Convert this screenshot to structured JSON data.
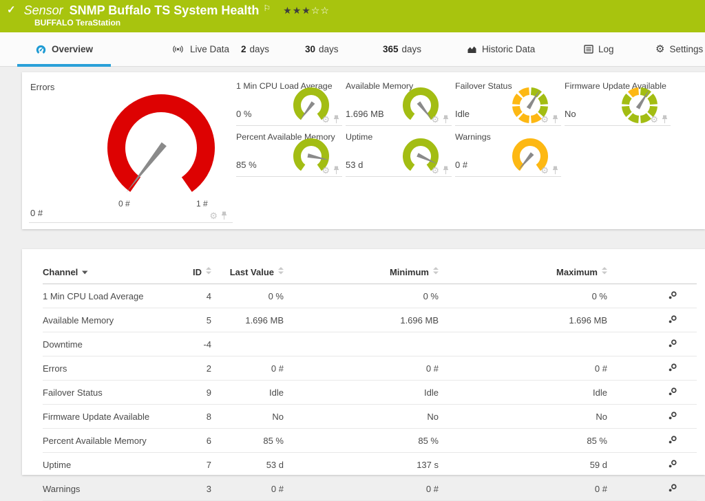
{
  "topbar": {
    "status_check": "✓",
    "kind": "Sensor",
    "title": "SNMP Buffalo TS System Health",
    "subtitle": "BUFFALO TeraStation",
    "rating": {
      "filled": 3,
      "total": 5
    },
    "bg_color": "#a8c40e"
  },
  "icons": {
    "flag": "⚐",
    "gear": "⚙",
    "star_filled": "★",
    "star_empty": "☆"
  },
  "tabs": [
    {
      "id": "overview",
      "icon": "gauge-icon",
      "label": "Overview",
      "active": true
    },
    {
      "id": "live-data",
      "icon": "broadcast-icon",
      "label": "Live Data"
    },
    {
      "id": "2-days",
      "number": "2",
      "label": "days"
    },
    {
      "id": "30-days",
      "number": "30",
      "label": "days"
    },
    {
      "id": "365-days",
      "number": "365",
      "label": "days"
    },
    {
      "id": "historic-data",
      "icon": "area-chart-icon",
      "label": "Historic Data"
    },
    {
      "id": "log",
      "icon": "log-icon",
      "label": "Log"
    },
    {
      "id": "settings",
      "icon": "gear-icon",
      "label": "Settings"
    }
  ],
  "accent": {
    "tab_blue": "#2aa0d8",
    "icon_blue": "#1d9ad3"
  },
  "gauges": {
    "needle_color": "#8a8a8a",
    "segment_colors": {
      "green": "#a3bd13",
      "yellow": "#fdb813"
    },
    "primary": {
      "label": "Errors",
      "value": "0 #",
      "scale_min": "0 #",
      "scale_max": "1 #",
      "kind": "arc",
      "arc_color": "#dd0202",
      "needle_deg": 128
    },
    "tiles": [
      {
        "label": "1 Min CPU Load Average",
        "value": "0 %",
        "kind": "arc",
        "arc_color": "#a3bd13",
        "needle_deg": 127
      },
      {
        "label": "Available Memory",
        "value": "1.696 MB",
        "kind": "arc",
        "arc_color": "#a3bd13",
        "needle_deg": 52
      },
      {
        "label": "Failover Status",
        "value": "Idle",
        "kind": "ring",
        "segments": [
          "green",
          "green",
          "green",
          "yellow",
          "yellow",
          "yellow",
          "yellow",
          "yellow"
        ],
        "needle_deg": -58
      },
      {
        "label": "Firmware Update Available",
        "value": "No",
        "kind": "ring",
        "segments": [
          "green",
          "green",
          "green",
          "green",
          "green",
          "green",
          "green",
          "yellow"
        ],
        "needle_deg": -58
      },
      {
        "label": "Percent Available Memory",
        "value": "85 %",
        "kind": "arc",
        "arc_color": "#a3bd13",
        "needle_deg": 12
      },
      {
        "label": "Uptime",
        "value": "53 d",
        "kind": "arc",
        "arc_color": "#a3bd13",
        "needle_deg": 25
      },
      {
        "label": "Warnings",
        "value": "0 #",
        "kind": "arc",
        "arc_color": "#fdb813",
        "needle_deg": 130
      }
    ]
  },
  "table": {
    "columns": [
      {
        "key": "channel",
        "label": "Channel",
        "sort": "desc"
      },
      {
        "key": "id",
        "label": "ID",
        "sort": "none"
      },
      {
        "key": "last",
        "label": "Last Value",
        "sort": "none"
      },
      {
        "key": "min",
        "label": "Minimum",
        "sort": "none"
      },
      {
        "key": "max",
        "label": "Maximum",
        "sort": "none"
      }
    ],
    "rows": [
      {
        "channel": "1 Min CPU Load Average",
        "id": "4",
        "last": "0 %",
        "min": "0 %",
        "max": "0 %"
      },
      {
        "channel": "Available Memory",
        "id": "5",
        "last": "1.696 MB",
        "min": "1.696 MB",
        "max": "1.696 MB"
      },
      {
        "channel": "Downtime",
        "id": "-4",
        "last": "",
        "min": "",
        "max": ""
      },
      {
        "channel": "Errors",
        "id": "2",
        "last": "0 #",
        "min": "0 #",
        "max": "0 #"
      },
      {
        "channel": "Failover Status",
        "id": "9",
        "last": "Idle",
        "min": "Idle",
        "max": "Idle"
      },
      {
        "channel": "Firmware Update Available",
        "id": "8",
        "last": "No",
        "min": "No",
        "max": "No"
      },
      {
        "channel": "Percent Available Memory",
        "id": "6",
        "last": "85 %",
        "min": "85 %",
        "max": "85 %"
      },
      {
        "channel": "Uptime",
        "id": "7",
        "last": "53 d",
        "min": "137 s",
        "max": "59 d"
      },
      {
        "channel": "Warnings",
        "id": "3",
        "last": "0 #",
        "min": "0 #",
        "max": "0 #"
      }
    ]
  }
}
